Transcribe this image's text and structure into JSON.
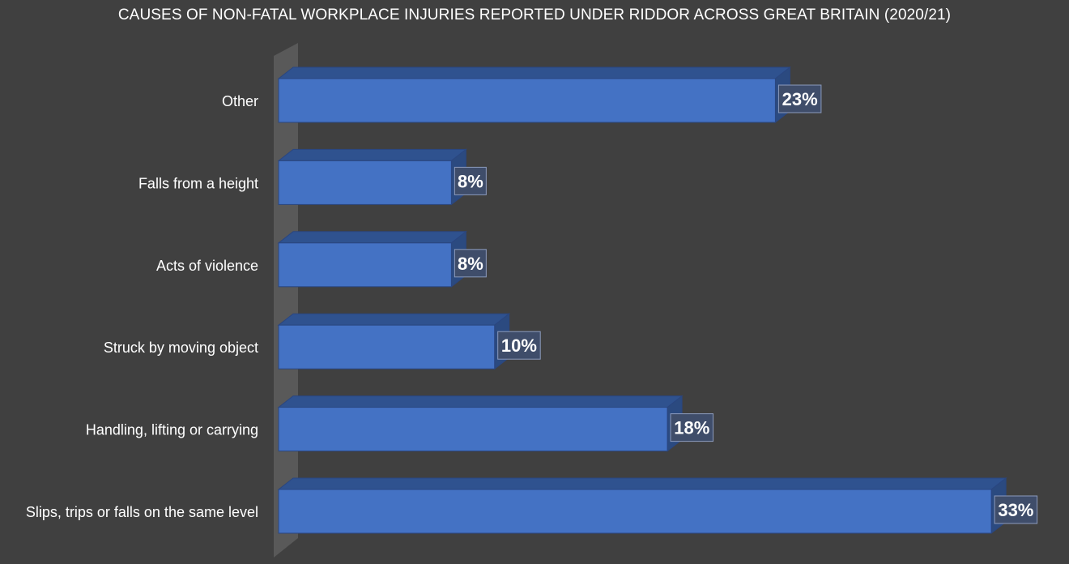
{
  "chart_data": {
    "type": "bar",
    "orientation": "horizontal",
    "style": "3d",
    "title": "CAUSES OF NON-FATAL WORKPLACE INJURIES REPORTED UNDER RIDDOR ACROSS GREAT BRITAIN (2020/21)",
    "xlabel": "",
    "ylabel": "",
    "categories": [
      "Other",
      "Falls from a height",
      "Acts of violence",
      "Struck by moving object",
      "Handling, lifting or carrying",
      "Slips, trips or falls on the same level"
    ],
    "values": [
      23,
      8,
      8,
      10,
      18,
      33
    ],
    "data_labels": [
      "23%",
      "8%",
      "8%",
      "10%",
      "18%",
      "33%"
    ],
    "unit": "%",
    "xlim": [
      0,
      33
    ],
    "grid": false,
    "legend": "none",
    "colors": {
      "background": "#404040",
      "bar_front": "#4472c4",
      "bar_top": "#2f528f",
      "bar_side": "#2b4a80",
      "bar_edge": "#2a4680",
      "floor": "#595959",
      "label_box": "#3f4d6a",
      "label_box_border": "#8c9bbd",
      "text": "#ffffff"
    }
  }
}
